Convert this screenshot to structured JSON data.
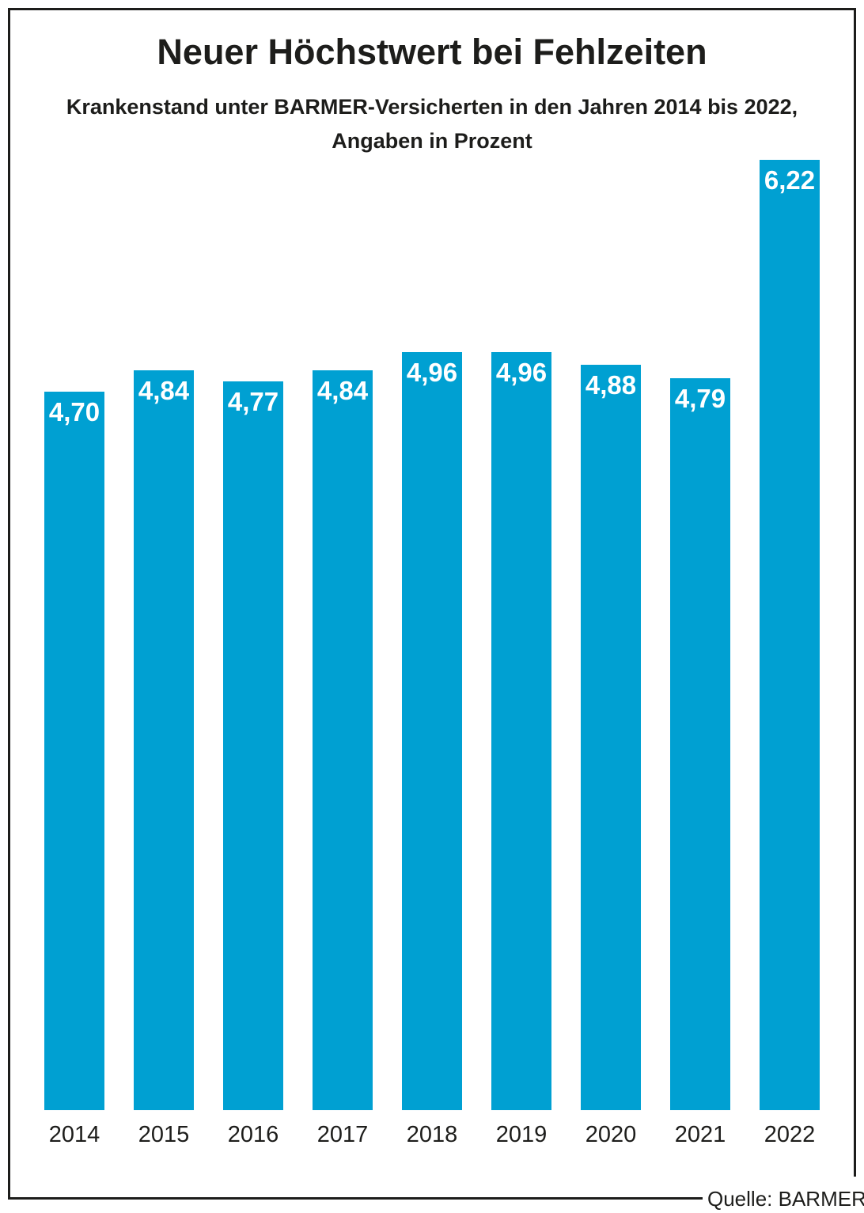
{
  "header": {
    "title": "Neuer Höchstwert bei Fehlzeiten",
    "subtitle_line1": "Krankenstand unter BARMER-Versicherten in den Jahren 2014 bis 2022,",
    "subtitle_line2": "Angaben in Prozent"
  },
  "footer": {
    "source": "Quelle: BARMER"
  },
  "colors": {
    "bar": "#00a0d2",
    "ink": "#1d1d1b",
    "value_label": "#ffffff",
    "background": "#ffffff"
  },
  "chart_data": {
    "type": "bar",
    "title": "Neuer Höchstwert bei Fehlzeiten",
    "subtitle": "Krankenstand unter BARMER-Versicherten in den Jahren 2014 bis 2022, Angaben in Prozent",
    "categories": [
      "2014",
      "2015",
      "2016",
      "2017",
      "2018",
      "2019",
      "2020",
      "2021",
      "2022"
    ],
    "values": [
      4.7,
      4.84,
      4.77,
      4.84,
      4.96,
      4.96,
      4.88,
      4.79,
      6.22
    ],
    "value_labels": [
      "4,70",
      "4,84",
      "4,77",
      "4,84",
      "4,96",
      "4,96",
      "4,88",
      "4,79",
      "6,22"
    ],
    "xlabel": "",
    "ylabel": "",
    "unit": "Prozent",
    "ylim": [
      0,
      6.22
    ],
    "grid": false,
    "legend": false,
    "source": "Quelle: BARMER"
  }
}
